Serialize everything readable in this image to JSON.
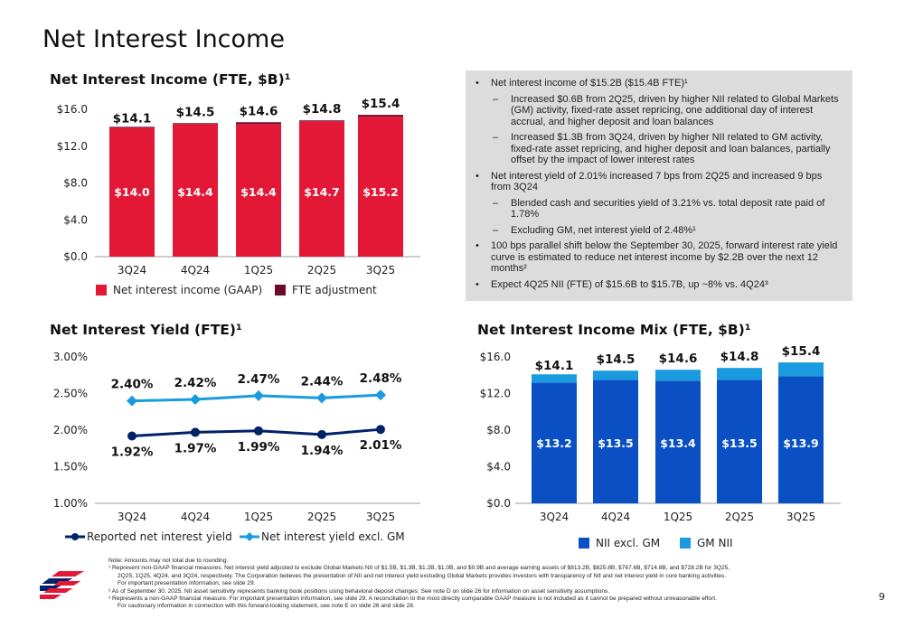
{
  "page": {
    "title": "Net Interest Income",
    "page_number": "9"
  },
  "colors": {
    "red": "#e31837",
    "maroon": "#6b0a2c",
    "navy": "#012169",
    "lightblue": "#1a9be0",
    "blue": "#0a4fc4",
    "panel": "#dcdcdc"
  },
  "bullets": [
    {
      "text": "Net interest income of $15.2B ($15.4B FTE)¹",
      "subs": [
        "Increased $0.6B from 2Q25, driven by higher NII related to Global Markets (GM) activity, fixed-rate asset repricing, one additional day of interest accrual, and higher deposit and loan balances",
        "Increased $1.3B from 3Q24, driven by higher NII related to GM activity, fixed-rate asset repricing, and higher deposit and loan balances, partially offset by the impact of lower interest rates"
      ]
    },
    {
      "text": "Net interest yield of 2.01% increased 7 bps from 2Q25 and increased 9 bps from 3Q24",
      "subs": [
        "Blended cash and securities yield of 3.21% vs. total deposit rate paid of 1.78%",
        "Excluding GM, net interest yield of 2.48%¹"
      ]
    },
    {
      "text": "100 bps parallel shift below the September 30, 2025, forward interest rate yield curve is estimated to reduce net interest income by $2.2B over the next 12 months²",
      "subs": []
    },
    {
      "text": "Expect 4Q25 NII (FTE) of $15.6B to $15.7B, up ~8% vs. 4Q24³",
      "subs": []
    }
  ],
  "chart_data": [
    {
      "type": "bar",
      "stacked": true,
      "title": "Net Interest Income (FTE, $B)¹",
      "categories": [
        "3Q24",
        "4Q24",
        "1Q25",
        "2Q25",
        "3Q25"
      ],
      "yticks": [
        "$0.0",
        "$4.0",
        "$8.0",
        "$12.0",
        "$16.0"
      ],
      "ylim": [
        0,
        16
      ],
      "series": [
        {
          "name": "Net interest income (GAAP)",
          "values": [
            14.0,
            14.4,
            14.4,
            14.7,
            15.2
          ],
          "labels": [
            "$14.0",
            "$14.4",
            "$14.4",
            "$14.7",
            "$15.2"
          ],
          "color": "#e31837"
        },
        {
          "name": "FTE adjustment",
          "values": [
            0.1,
            0.1,
            0.2,
            0.1,
            0.2
          ],
          "color": "#6b0a2c"
        }
      ],
      "totals": [
        14.1,
        14.5,
        14.6,
        14.8,
        15.4
      ],
      "total_labels": [
        "$14.1",
        "$14.5",
        "$14.6",
        "$14.8",
        "$15.4"
      ],
      "legend": "bottom"
    },
    {
      "type": "line",
      "title": "Net Interest Yield (FTE)¹",
      "categories": [
        "3Q24",
        "4Q24",
        "1Q25",
        "2Q25",
        "3Q25"
      ],
      "yticks": [
        "1.00%",
        "1.50%",
        "2.00%",
        "2.50%",
        "3.00%"
      ],
      "ylim": [
        1.0,
        3.0
      ],
      "series": [
        {
          "name": "Reported net interest yield",
          "values": [
            1.92,
            1.97,
            1.99,
            1.94,
            2.01
          ],
          "labels": [
            "1.92%",
            "1.97%",
            "1.99%",
            "1.94%",
            "2.01%"
          ],
          "color": "#012169"
        },
        {
          "name": "Net interest yield excl. GM",
          "values": [
            2.4,
            2.42,
            2.47,
            2.44,
            2.48
          ],
          "labels": [
            "2.40%",
            "2.42%",
            "2.47%",
            "2.44%",
            "2.48%"
          ],
          "color": "#1a9be0"
        }
      ],
      "legend": "bottom"
    },
    {
      "type": "bar",
      "stacked": true,
      "title": "Net Interest Income Mix (FTE, $B)¹",
      "categories": [
        "3Q24",
        "4Q24",
        "1Q25",
        "2Q25",
        "3Q25"
      ],
      "yticks": [
        "$0.0",
        "$4.0",
        "$8.0",
        "$12.0",
        "$16.0"
      ],
      "ylim": [
        0,
        16
      ],
      "series": [
        {
          "name": "NII excl. GM",
          "values": [
            13.2,
            13.5,
            13.4,
            13.5,
            13.9
          ],
          "labels": [
            "$13.2",
            "$13.5",
            "$13.4",
            "$13.5",
            "$13.9"
          ],
          "color": "#0a4fc4"
        },
        {
          "name": "GM NII",
          "values": [
            0.9,
            1.0,
            1.2,
            1.3,
            1.5
          ],
          "color": "#1a9be0"
        }
      ],
      "totals": [
        14.1,
        14.5,
        14.6,
        14.8,
        15.4
      ],
      "total_labels": [
        "$14.1",
        "$14.5",
        "$14.6",
        "$14.8",
        "$15.4"
      ],
      "legend": "bottom"
    }
  ],
  "footnotes": {
    "note": "Note: Amounts may not total due to rounding.",
    "f1a": "¹ Represent non-GAAP financial measures. Net interest yield adjusted to exclude Global Markets NII of $1.5B, $1.3B, $1.2B, $1.0B, and $0.9B and average earning assets of $813.2B, $825.8B, $767.6B, $714.8B, and $728.2B for 3Q25,",
    "f1b": "2Q25, 1Q25, 4Q24, and 3Q24, respectively. The Corporation believes the presentation of NII and net interest yield excluding Global Markets provides investors with transparency of NII and net interest yield in core banking activities.",
    "f1c": "For important presentation information, see slide 29.",
    "f2": "² As of September 30, 2025. NII asset sensitivity represents banking book positions using behavioral deposit changes. See note D on slide 26 for information on asset sensitivity assumptions.",
    "f3a": "³ Represents a non-GAAP financial measure. For important presentation information, see slide 29. A reconciliation to the most directly comparable GAAP measure is not included as it cannot be prepared without unreasonable effort.",
    "f3b": "For cautionary information in connection with this forward-looking statement, see note E on slide 26 and slide 28."
  }
}
